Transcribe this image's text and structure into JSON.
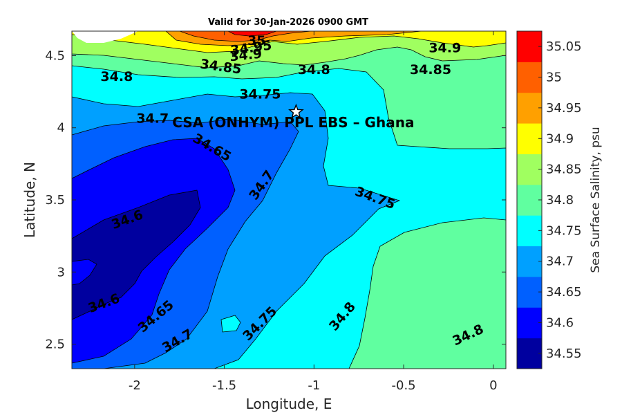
{
  "chart_data": {
    "type": "heatmap",
    "subtype": "filled-contour",
    "title": "Valid for 30-Jan-2026 0900 GMT",
    "xlabel": "Longitude, E",
    "ylabel": "Latitude, N",
    "xlim": [
      -2.35,
      0.07
    ],
    "ylim": [
      2.33,
      4.67
    ],
    "xticks": [
      -2,
      -1.5,
      -1,
      -0.5,
      0
    ],
    "xtick_labels": [
      "-2",
      "-1.5",
      "-1",
      "-0.5",
      "0"
    ],
    "yticks": [
      2.5,
      3,
      3.5,
      4,
      4.5
    ],
    "ytick_labels": [
      "2.5",
      "3",
      "3.5",
      "4",
      "4.5"
    ],
    "colorbar": {
      "label": "Sea Surface Salinity, psu",
      "levels": [
        34.55,
        34.6,
        34.65,
        34.7,
        34.75,
        34.8,
        34.85,
        34.9,
        34.95,
        35,
        35.05
      ],
      "tick_labels": [
        "34.55",
        "34.6",
        "34.65",
        "34.7",
        "34.75",
        "34.8",
        "34.85",
        "34.9",
        "34.95",
        "35",
        "35.05"
      ],
      "colors": [
        "#00009f",
        "#0000ff",
        "#0060ff",
        "#00a0ff",
        "#00ffff",
        "#60ffa0",
        "#a0ff60",
        "#ffff00",
        "#ffa000",
        "#ff6000",
        "#ff0000"
      ]
    },
    "contour_labels": [
      {
        "text": "35",
        "x": -1.32,
        "y": 4.6
      },
      {
        "text": "34.95",
        "x": -1.35,
        "y": 4.55
      },
      {
        "text": "34.9",
        "x": -1.38,
        "y": 4.5
      },
      {
        "text": "34.9",
        "x": -0.27,
        "y": 4.55
      },
      {
        "text": "34.85",
        "x": -1.52,
        "y": 4.42
      },
      {
        "text": "34.85",
        "x": -0.35,
        "y": 4.4
      },
      {
        "text": "34.8",
        "x": -2.1,
        "y": 4.35
      },
      {
        "text": "34.8",
        "x": -1.0,
        "y": 4.4
      },
      {
        "text": "34.75",
        "x": -1.3,
        "y": 4.23
      },
      {
        "text": "34.7",
        "x": -1.9,
        "y": 4.06
      },
      {
        "text": "34.65",
        "x": -1.57,
        "y": 3.86
      },
      {
        "text": "34.7",
        "x": -1.29,
        "y": 3.6
      },
      {
        "text": "34.75",
        "x": -0.66,
        "y": 3.51
      },
      {
        "text": "34.6",
        "x": -2.04,
        "y": 3.36
      },
      {
        "text": "34.6",
        "x": -2.17,
        "y": 2.78
      },
      {
        "text": "34.65",
        "x": -1.88,
        "y": 2.69
      },
      {
        "text": "34.7",
        "x": -1.76,
        "y": 2.52
      },
      {
        "text": "34.75",
        "x": -1.3,
        "y": 2.64
      },
      {
        "text": "34.8",
        "x": -0.84,
        "y": 2.69
      },
      {
        "text": "34.8",
        "x": -0.14,
        "y": 2.56
      }
    ],
    "site": {
      "name": "CSA (ONHYM) PPL EBS  – Ghana",
      "x": -1.1,
      "y": 4.11
    }
  }
}
